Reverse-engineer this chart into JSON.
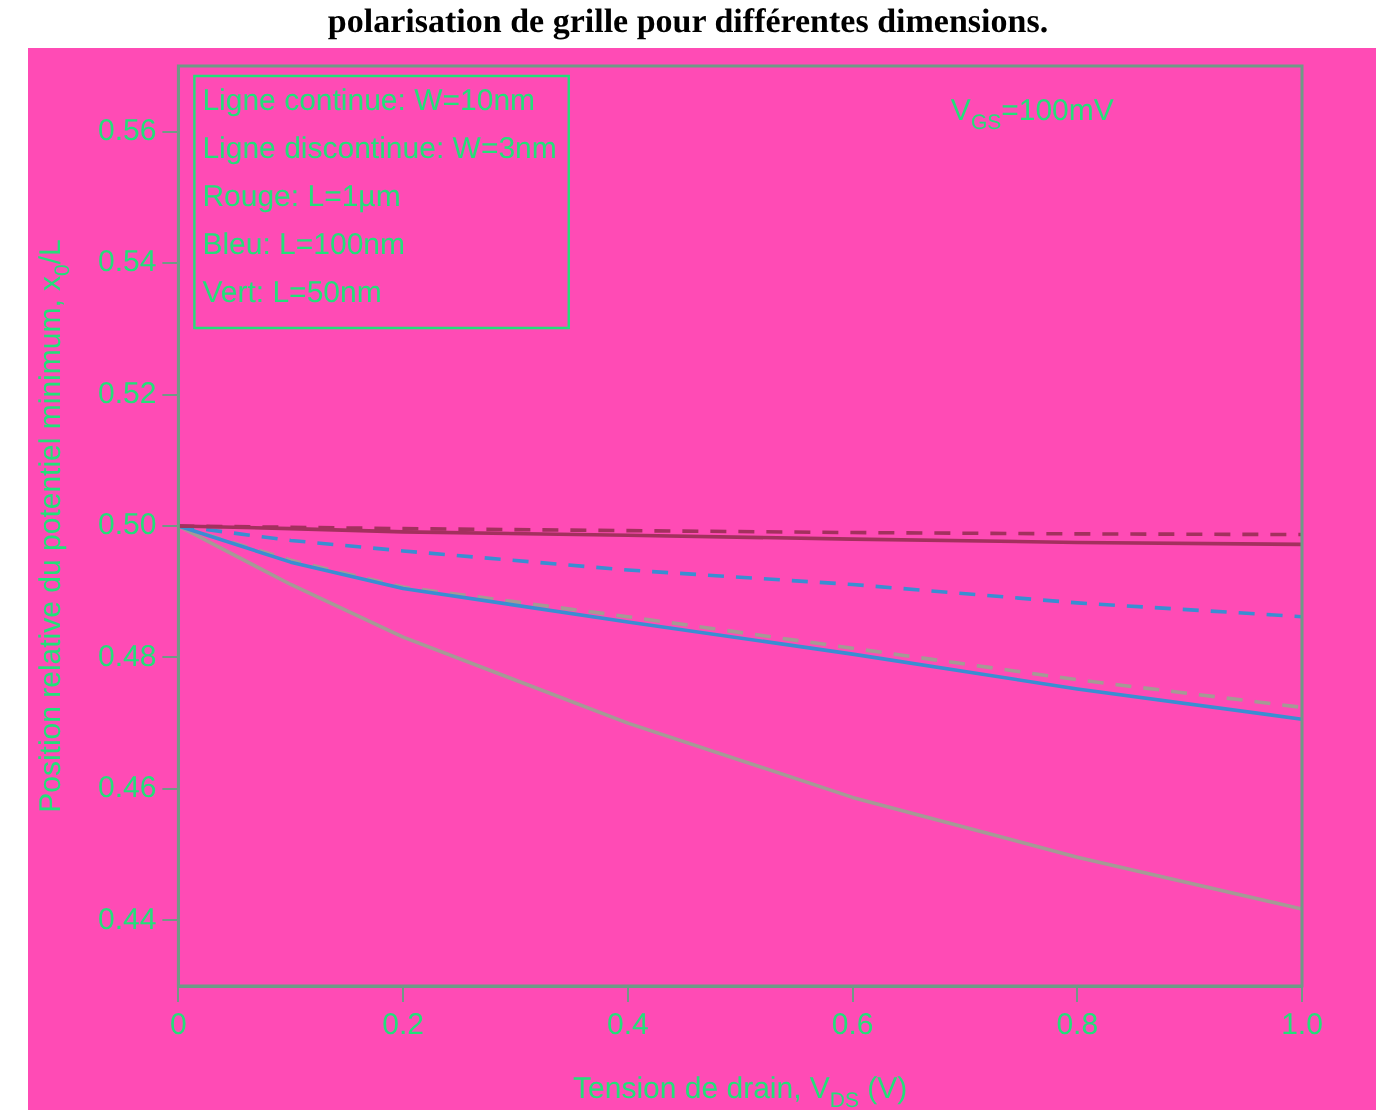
{
  "chart_data": {
    "type": "line",
    "title": "polarisation de grille pour différentes dimensions.",
    "xlabel": "Tension de drain, V$_{DS}$ (V)",
    "ylabel": "Position relative du potentiel minimum, x$_{0}$/L",
    "x": [
      0,
      0.1,
      0.2,
      0.4,
      0.6,
      0.8,
      1.0
    ],
    "series": [
      {
        "color": "#a3305e",
        "line_style": "solid",
        "values": [
          0.5,
          0.4996,
          0.4991,
          0.4986,
          0.498,
          0.4975,
          0.4972
        ]
      },
      {
        "color": "#a3305e",
        "line_style": "dashed",
        "values": [
          0.5,
          0.4998,
          0.4996,
          0.4993,
          0.499,
          0.4988,
          0.4987
        ]
      },
      {
        "color": "#3a8ed2",
        "line_style": "solid",
        "values": [
          0.5,
          0.4945,
          0.4905,
          0.4854,
          0.4805,
          0.4752,
          0.4706
        ]
      },
      {
        "color": "#3a8ed2",
        "line_style": "dashed",
        "values": [
          0.5,
          0.4978,
          0.4962,
          0.4933,
          0.4911,
          0.4883,
          0.4862
        ]
      },
      {
        "color": "#a59a95",
        "line_style": "solid",
        "values": [
          0.5,
          0.4911,
          0.4831,
          0.47,
          0.4587,
          0.4496,
          0.4417
        ]
      },
      {
        "color": "#a59a95",
        "line_style": "dashed",
        "values": [
          0.5,
          0.4948,
          0.4907,
          0.4862,
          0.4814,
          0.4766,
          0.4724
        ]
      }
    ],
    "xlim": [
      0,
      1.0
    ],
    "xticks": [
      0,
      0.2,
      0.4,
      0.6,
      0.8,
      {
        "value": 1.0,
        "label": "1.0"
      }
    ],
    "ylim": [
      0.43,
      0.57
    ],
    "yticks": [
      0.44,
      0.46,
      0.48,
      {
        "value": 0.5,
        "label": "0.50"
      },
      0.52,
      0.54,
      0.56
    ],
    "annotations": [
      "Ligne continue: W=10nm",
      "Ligne discontinue: W=3nm",
      "Rouge: L=1µm",
      "Bleu: L=100nm",
      "Vert: L=50nm",
      "V$_{GS}$=100mV"
    ],
    "grid": false,
    "legend": false,
    "marker": "none"
  }
}
